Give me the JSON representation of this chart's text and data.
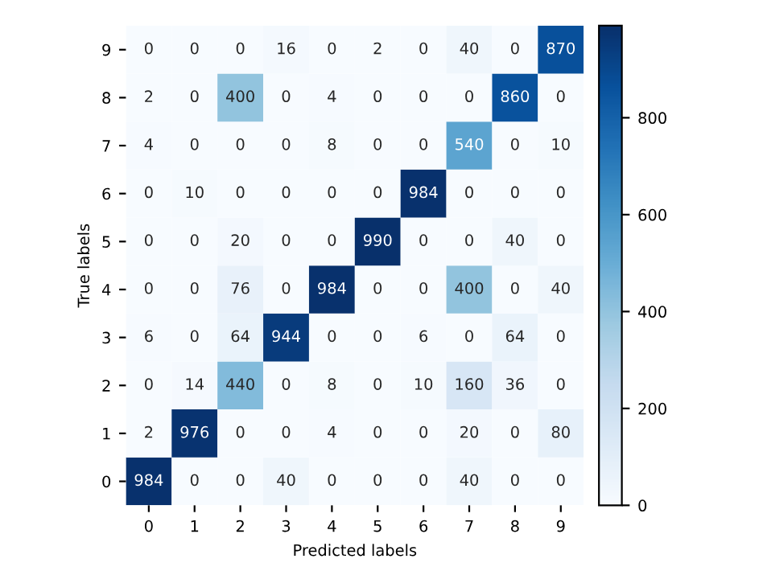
{
  "chart_data": {
    "type": "heatmap",
    "xlabel": "Predicted labels",
    "ylabel": "True labels",
    "categories": [
      "0",
      "1",
      "2",
      "3",
      "4",
      "5",
      "6",
      "7",
      "8",
      "9"
    ],
    "y_categories": [
      "9",
      "8",
      "7",
      "6",
      "5",
      "4",
      "3",
      "2",
      "1",
      "0"
    ],
    "cells": [
      [
        0,
        0,
        0,
        16,
        0,
        2,
        0,
        40,
        0,
        870
      ],
      [
        2,
        0,
        400,
        0,
        4,
        0,
        0,
        0,
        860,
        0
      ],
      [
        4,
        0,
        0,
        0,
        8,
        0,
        0,
        540,
        0,
        10
      ],
      [
        0,
        10,
        0,
        0,
        0,
        0,
        984,
        0,
        0,
        0
      ],
      [
        0,
        0,
        20,
        0,
        0,
        990,
        0,
        0,
        40,
        0
      ],
      [
        0,
        0,
        76,
        0,
        984,
        0,
        0,
        400,
        0,
        40
      ],
      [
        6,
        0,
        64,
        944,
        0,
        0,
        6,
        0,
        64,
        0
      ],
      [
        0,
        14,
        440,
        0,
        8,
        0,
        10,
        160,
        36,
        0
      ],
      [
        2,
        976,
        0,
        0,
        4,
        0,
        0,
        20,
        0,
        80
      ],
      [
        984,
        0,
        0,
        40,
        0,
        0,
        0,
        40,
        0,
        0
      ]
    ],
    "data_labels": true,
    "clim": [
      0,
      990
    ],
    "cticks": [
      0,
      200,
      400,
      600,
      800
    ]
  }
}
